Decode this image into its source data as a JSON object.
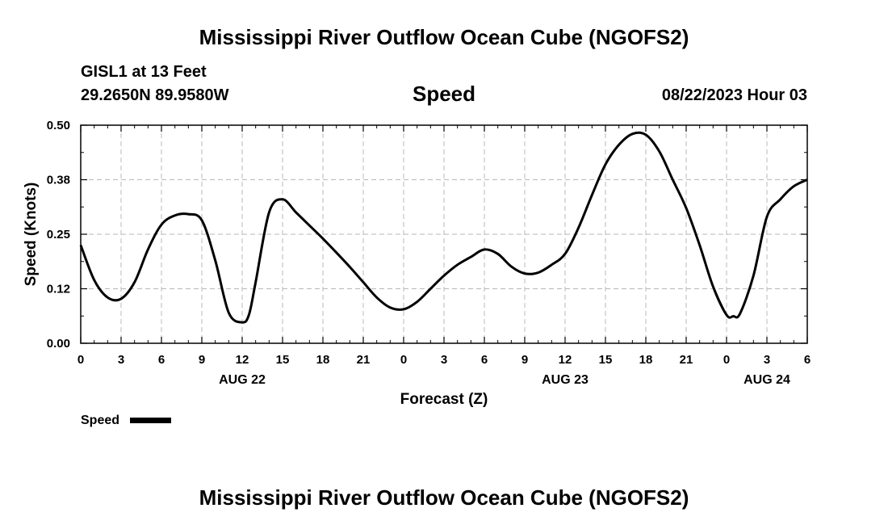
{
  "page": {
    "main_title": "Mississippi River Outflow Ocean Cube (NGOFS2)",
    "station_line": "GISL1 at 13 Feet",
    "coords_line": "29.2650N  89.9580W",
    "variable_title": "Speed",
    "datetime_line": "08/22/2023 Hour 03",
    "bottom_title": "Mississippi River Outflow Ocean Cube (NGOFS2)"
  },
  "chart_data": {
    "type": "line",
    "title": "Speed",
    "xlabel": "Forecast (Z)",
    "ylabel": "Speed (Knots)",
    "ylim": [
      0,
      0.5
    ],
    "xlim": [
      0,
      54
    ],
    "grid": true,
    "y_ticks": [
      {
        "value": 0,
        "label": "0.00"
      },
      {
        "value": 0.125,
        "label": "0.12"
      },
      {
        "value": 0.25,
        "label": "0.25"
      },
      {
        "value": 0.375,
        "label": "0.38"
      },
      {
        "value": 0.5,
        "label": "0.50"
      }
    ],
    "x_ticks": [
      {
        "value": 0,
        "label": "0"
      },
      {
        "value": 3,
        "label": "3"
      },
      {
        "value": 6,
        "label": "6"
      },
      {
        "value": 9,
        "label": "9"
      },
      {
        "value": 12,
        "label": "12"
      },
      {
        "value": 15,
        "label": "15"
      },
      {
        "value": 18,
        "label": "18"
      },
      {
        "value": 21,
        "label": "21"
      },
      {
        "value": 24,
        "label": "0"
      },
      {
        "value": 27,
        "label": "3"
      },
      {
        "value": 30,
        "label": "6"
      },
      {
        "value": 33,
        "label": "9"
      },
      {
        "value": 36,
        "label": "12"
      },
      {
        "value": 39,
        "label": "15"
      },
      {
        "value": 42,
        "label": "18"
      },
      {
        "value": 45,
        "label": "21"
      },
      {
        "value": 48,
        "label": "0"
      },
      {
        "value": 51,
        "label": "3"
      },
      {
        "value": 54,
        "label": "6"
      }
    ],
    "date_labels": [
      {
        "value": 12,
        "label": "AUG 22"
      },
      {
        "value": 36,
        "label": "AUG 23"
      },
      {
        "value": 51,
        "label": "AUG 24"
      }
    ],
    "legend": {
      "label": "Speed",
      "placement": "bottom-left"
    },
    "series": [
      {
        "name": "Speed",
        "color": "#000000",
        "x": [
          0,
          1,
          2,
          3,
          4,
          5,
          6,
          7,
          8,
          9,
          10,
          11,
          12,
          12.5,
          13,
          14,
          15,
          16,
          17,
          18,
          19,
          20,
          21,
          22,
          23,
          24,
          25,
          26,
          27,
          28,
          29,
          30,
          31,
          32,
          33,
          34,
          35,
          36,
          37,
          38,
          39,
          40,
          41,
          42,
          43,
          44,
          45,
          46,
          47,
          48,
          48.5,
          49,
          50,
          51,
          52,
          53,
          54
        ],
        "y": [
          0.225,
          0.145,
          0.105,
          0.102,
          0.14,
          0.215,
          0.272,
          0.293,
          0.296,
          0.282,
          0.19,
          0.07,
          0.048,
          0.065,
          0.14,
          0.3,
          0.33,
          0.3,
          0.27,
          0.24,
          0.208,
          0.175,
          0.14,
          0.105,
          0.082,
          0.078,
          0.095,
          0.125,
          0.155,
          0.18,
          0.198,
          0.215,
          0.205,
          0.176,
          0.16,
          0.162,
          0.18,
          0.205,
          0.265,
          0.34,
          0.41,
          0.455,
          0.48,
          0.478,
          0.44,
          0.375,
          0.31,
          0.225,
          0.13,
          0.065,
          0.062,
          0.068,
          0.155,
          0.29,
          0.33,
          0.36,
          0.375
        ]
      }
    ]
  }
}
